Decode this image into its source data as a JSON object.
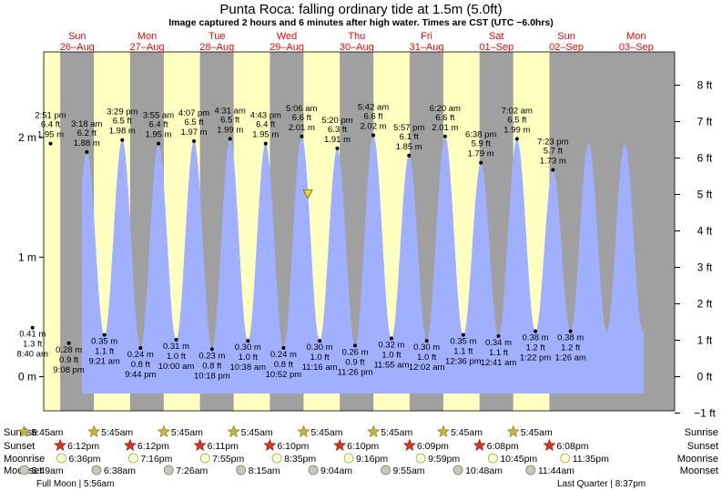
{
  "title": "Punta Roca: falling  ordinary tide at 1.5m (5.0ft)",
  "subtitle": "Image captured 2 hours and 6 minutes after high water. Times are CST (UTC −6.0hrs)",
  "colors": {
    "day": "#ffffc0",
    "night": "#a0a0a0",
    "tide": "#a0b0ff",
    "date_red": "#ff0000",
    "marker": "#e8e020"
  },
  "chart_data": {
    "type": "area",
    "title": "Punta Roca: falling  ordinary tide at 1.5m (5.0ft)",
    "x_unit": "hours since 26-Aug 00:00 CST",
    "ylim_m": [
      -0.32,
      2.62
    ],
    "left_ticks": [
      {
        "v": 0,
        "label": "0 m"
      },
      {
        "v": 1,
        "label": "1 m"
      },
      {
        "v": 2,
        "label": "2 m"
      }
    ],
    "right_ticks": [
      {
        "v": -1,
        "label": "−1 ft"
      },
      {
        "v": 0,
        "label": "0 ft"
      },
      {
        "v": 1,
        "label": "1 ft"
      },
      {
        "v": 2,
        "label": "2 ft"
      },
      {
        "v": 3,
        "label": "3 ft"
      },
      {
        "v": 4,
        "label": "4 ft"
      },
      {
        "v": 5,
        "label": "5 ft"
      },
      {
        "v": 6,
        "label": "6 ft"
      },
      {
        "v": 7,
        "label": "7 ft"
      },
      {
        "v": 8,
        "label": "8 ft"
      }
    ],
    "days": [
      {
        "day": "Sun",
        "date": "26–Aug"
      },
      {
        "day": "Mon",
        "date": "27–Aug"
      },
      {
        "day": "Tue",
        "date": "28–Aug"
      },
      {
        "day": "Wed",
        "date": "29–Aug"
      },
      {
        "day": "Thu",
        "date": "30–Aug"
      },
      {
        "day": "Fri",
        "date": "31–Aug"
      },
      {
        "day": "Sat",
        "date": "01–Sep"
      },
      {
        "day": "Sun",
        "date": "02–Sep"
      },
      {
        "day": "Mon",
        "date": "03–Sep"
      }
    ],
    "extremes": [
      {
        "type": "low",
        "time": "8:40 am",
        "m": 0.41,
        "ft": "1.3 ft",
        "m_label": "0.41 m"
      },
      {
        "type": "high",
        "time": "2:51 pm",
        "m": 1.95,
        "ft": "6.4 ft",
        "m_label": "1.95 m"
      },
      {
        "type": "low",
        "time": "9:08 pm",
        "m": 0.28,
        "ft": "0.9 ft",
        "m_label": "0.28 m"
      },
      {
        "type": "high",
        "time": "3:18 am",
        "m": 1.88,
        "ft": "6.2 ft",
        "m_label": "1.88 m"
      },
      {
        "type": "low",
        "time": "9:21 am",
        "m": 0.35,
        "ft": "1.1 ft",
        "m_label": "0.35 m"
      },
      {
        "type": "high",
        "time": "3:29 pm",
        "m": 1.98,
        "ft": "6.5 ft",
        "m_label": "1.98 m"
      },
      {
        "type": "low",
        "time": "9:44 pm",
        "m": 0.24,
        "ft": "0.8 ft",
        "m_label": "0.24 m"
      },
      {
        "type": "high",
        "time": "3:55 am",
        "m": 1.95,
        "ft": "6.4 ft",
        "m_label": "1.95 m"
      },
      {
        "type": "low",
        "time": "10:00 am",
        "m": 0.31,
        "ft": "1.0 ft",
        "m_label": "0.31 m"
      },
      {
        "type": "high",
        "time": "4:07 pm",
        "m": 1.97,
        "ft": "6.5 ft",
        "m_label": "1.97 m"
      },
      {
        "type": "low",
        "time": "10:18 pm",
        "m": 0.23,
        "ft": "0.8 ft",
        "m_label": "0.23 m"
      },
      {
        "type": "high",
        "time": "4:31 am",
        "m": 1.99,
        "ft": "6.5 ft",
        "m_label": "1.99 m"
      },
      {
        "type": "low",
        "time": "10:38 am",
        "m": 0.3,
        "ft": "1.0 ft",
        "m_label": "0.30 m"
      },
      {
        "type": "high",
        "time": "4:43 pm",
        "m": 1.95,
        "ft": "6.4 ft",
        "m_label": "1.95 m"
      },
      {
        "type": "low",
        "time": "10:52 pm",
        "m": 0.24,
        "ft": "0.8 ft",
        "m_label": "0.24 m"
      },
      {
        "type": "high",
        "time": "5:06 am",
        "m": 2.01,
        "ft": "6.6 ft",
        "m_label": "2.01 m"
      },
      {
        "type": "low",
        "time": "11:16 am",
        "m": 0.3,
        "ft": "1.0 ft",
        "m_label": "0.30 m"
      },
      {
        "type": "high",
        "time": "5:20 pm",
        "m": 1.91,
        "ft": "6.3 ft",
        "m_label": "1.91 m"
      },
      {
        "type": "low",
        "time": "11:26 pm",
        "m": 0.26,
        "ft": "0.9 ft",
        "m_label": "0.26 m"
      },
      {
        "type": "high",
        "time": "5:42 am",
        "m": 2.02,
        "ft": "6.6 ft",
        "m_label": "2.02 m"
      },
      {
        "type": "low",
        "time": "11:55 am",
        "m": 0.32,
        "ft": "1.0 ft",
        "m_label": "0.32 m"
      },
      {
        "type": "high",
        "time": "5:57 pm",
        "m": 1.85,
        "ft": "6.1 ft",
        "m_label": "1.85 m"
      },
      {
        "type": "low",
        "time": "12:02 am",
        "m": 0.3,
        "ft": "1.0 ft",
        "m_label": "0.30 m"
      },
      {
        "type": "high",
        "time": "6:20 am",
        "m": 2.01,
        "ft": "6.6 ft",
        "m_label": "2.01 m"
      },
      {
        "type": "low",
        "time": "12:36 pm",
        "m": 0.35,
        "ft": "1.1 ft",
        "m_label": "0.35 m"
      },
      {
        "type": "high",
        "time": "6:38 pm",
        "m": 1.79,
        "ft": "5.9 ft",
        "m_label": "1.79 m"
      },
      {
        "type": "low",
        "time": "12:41 am",
        "m": 0.34,
        "ft": "1.1 ft",
        "m_label": "0.34 m"
      },
      {
        "type": "high",
        "time": "7:02 am",
        "m": 1.99,
        "ft": "6.5 ft",
        "m_label": "1.99 m"
      },
      {
        "type": "low",
        "time": "1:22 pm",
        "m": 0.38,
        "ft": "1.2 ft",
        "m_label": "0.38 m"
      },
      {
        "type": "high",
        "time": "7:23 pm",
        "m": 1.73,
        "ft": "5.7 ft",
        "m_label": "1.73 m"
      },
      {
        "type": "low",
        "time": "1:26 am",
        "m": 0.38,
        "ft": "1.2 ft",
        "m_label": "0.38 m"
      }
    ],
    "current": {
      "m": 1.5,
      "ft": 5.0,
      "state": "falling"
    }
  },
  "almanac": {
    "row_labels": {
      "sunrise": "Sunrise",
      "sunset": "Sunset",
      "moonrise": "Moonrise",
      "moonset": "Moonset"
    },
    "sunrise": [
      "5:45am",
      "5:45am",
      "5:45am",
      "5:45am",
      "5:45am",
      "5:45am",
      "5:45am",
      "5:45am"
    ],
    "sunset": [
      "6:12pm",
      "6:12pm",
      "6:11pm",
      "6:10pm",
      "6:10pm",
      "6:09pm",
      "6:08pm",
      "6:08pm"
    ],
    "moonrise": [
      "6:36pm",
      "7:16pm",
      "7:55pm",
      "8:35pm",
      "9:16pm",
      "9:59pm",
      "10:45pm",
      "11:35pm"
    ],
    "moonset": [
      "5:49am",
      "6:38am",
      "7:26am",
      "8:15am",
      "9:04am",
      "9:55am",
      "10:48am",
      "11:44am"
    ],
    "phase_left": "Full Moon | 5:56am",
    "phase_right": "Last Quarter | 8:37pm"
  }
}
